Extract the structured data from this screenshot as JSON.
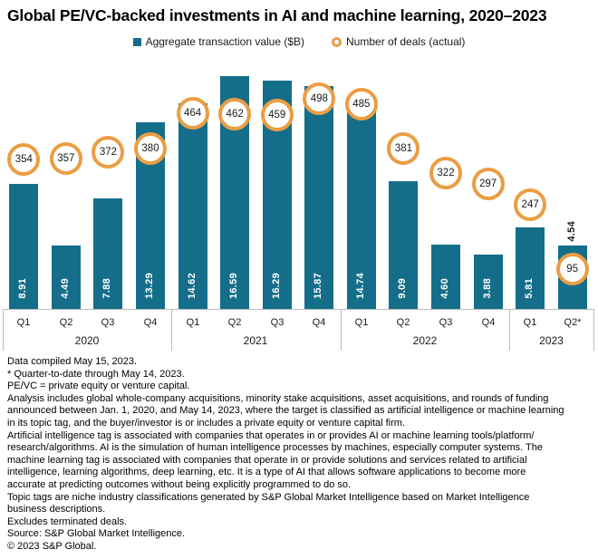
{
  "title": "Global PE/VC-backed investments in AI and machine learning, 2020–2023",
  "legend": {
    "bar_label": "Aggregate transaction value ($B)",
    "circle_label": "Number of deals (actual)"
  },
  "colors": {
    "bar": "#146e8a",
    "circle_ring": "#eb9d43",
    "axis_line": "#bcbcbc"
  },
  "chart_data": {
    "type": "bar",
    "title": "Global PE/VC-backed investments in AI and machine learning, 2020–2023",
    "categories": [
      "Q1",
      "Q2",
      "Q3",
      "Q4",
      "Q1",
      "Q2",
      "Q3",
      "Q4",
      "Q1",
      "Q2",
      "Q3",
      "Q4",
      "Q1",
      "Q2*"
    ],
    "year_groups": [
      {
        "label": "2020",
        "span": 4
      },
      {
        "label": "2021",
        "span": 4
      },
      {
        "label": "2022",
        "span": 4
      },
      {
        "label": "2023",
        "span": 2
      }
    ],
    "series": [
      {
        "name": "Aggregate transaction value ($B)",
        "type": "bar",
        "values": [
          8.91,
          4.49,
          7.88,
          13.29,
          14.62,
          16.59,
          16.29,
          15.87,
          14.74,
          9.09,
          4.6,
          3.88,
          5.81,
          4.54
        ]
      },
      {
        "name": "Number of deals (actual)",
        "type": "point",
        "values": [
          354,
          357,
          372,
          380,
          464,
          462,
          459,
          498,
          485,
          381,
          322,
          297,
          247,
          95
        ]
      }
    ],
    "value_decimals": 2,
    "outside_label_indices": [
      13
    ],
    "value_axis_range": [
      0,
      18
    ],
    "deals_axis_range": [
      0,
      730
    ],
    "grid": false,
    "legend_position": "top"
  },
  "footnotes": [
    "Data compiled May 15, 2023.",
    "* Quarter-to-date through May 14, 2023.",
    "PE/VC = private equity or venture capital.",
    "Analysis includes global whole-company acquisitions, minority stake acquisitions, asset acquisitions, and rounds of funding",
    "announced between Jan. 1, 2020, and May 14, 2023, where the target is classified as artificial intelligence or machine learning",
    "in its topic tag, and the buyer/investor is or includes a private equity or venture capital firm.",
    "Artificial intelligence tag is associated with companies that operates in or provides AI or machine learning tools/platform/",
    "research/algorithms. AI is the simulation of human intelligence processes by machines, especially computer systems. The",
    "machine learning tag is associated with companies that operate in or provide solutions and services related to artificial",
    "intelligence, learning algorithms, deep learning, etc. It is a type of AI that allows software applications to become more",
    "accurate at predicting outcomes without being explicitly programmed to do so.",
    "Topic tags are niche industry classifications generated by S&P Global Market Intelligence based on Market Intelligence",
    "business descriptions.",
    "Excludes terminated deals.",
    "Source: S&P Global Market Intelligence.",
    "© 2023 S&P Global."
  ]
}
